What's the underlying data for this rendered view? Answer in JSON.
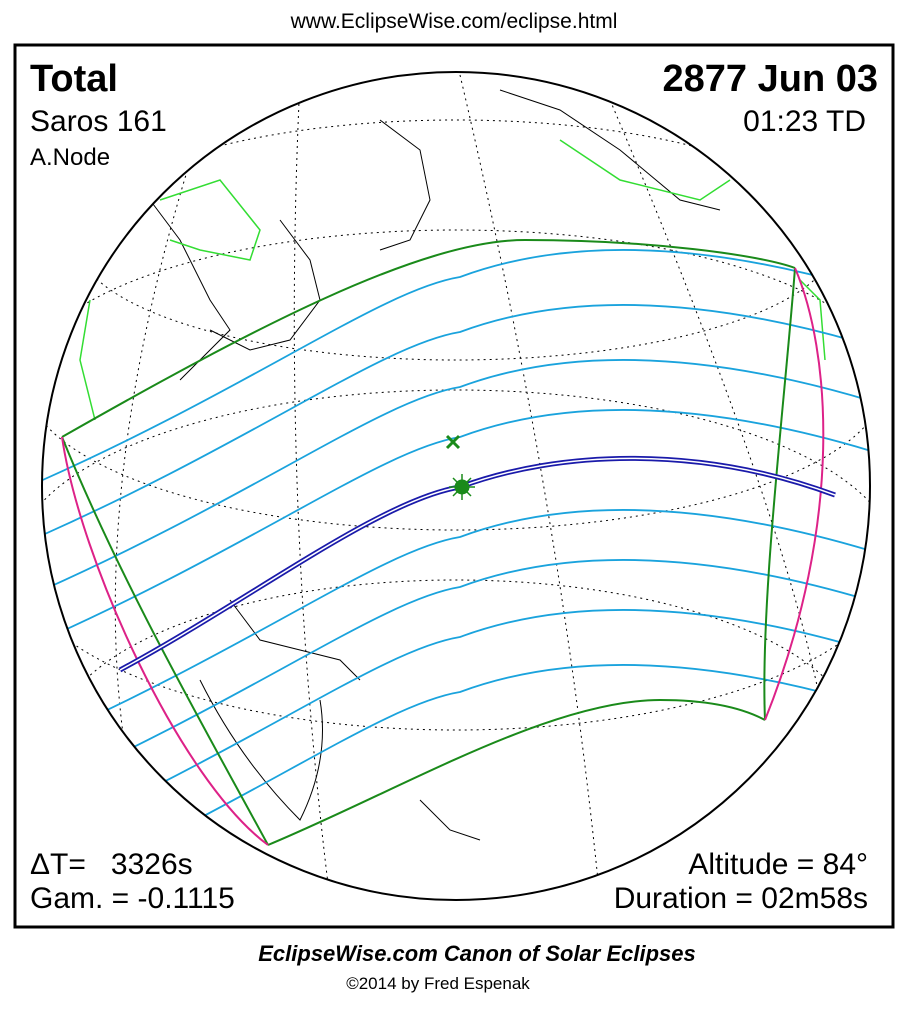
{
  "header": {
    "url": "www.EclipseWise.com/eclipse.html"
  },
  "panel": {
    "type": "Total",
    "date": "2877 Jun 03",
    "saros": "Saros 161",
    "time": "01:23 TD",
    "node": "A.Node",
    "delta_t": "ΔT=   3326s",
    "gamma": "Gam. = -0.1115",
    "altitude": "Altitude = 84°",
    "duration": "Duration = 02m58s"
  },
  "footer": {
    "title": "EclipseWise.com Canon of Solar Eclipses",
    "copyright": "©2014 by Fred Espenak"
  }
}
